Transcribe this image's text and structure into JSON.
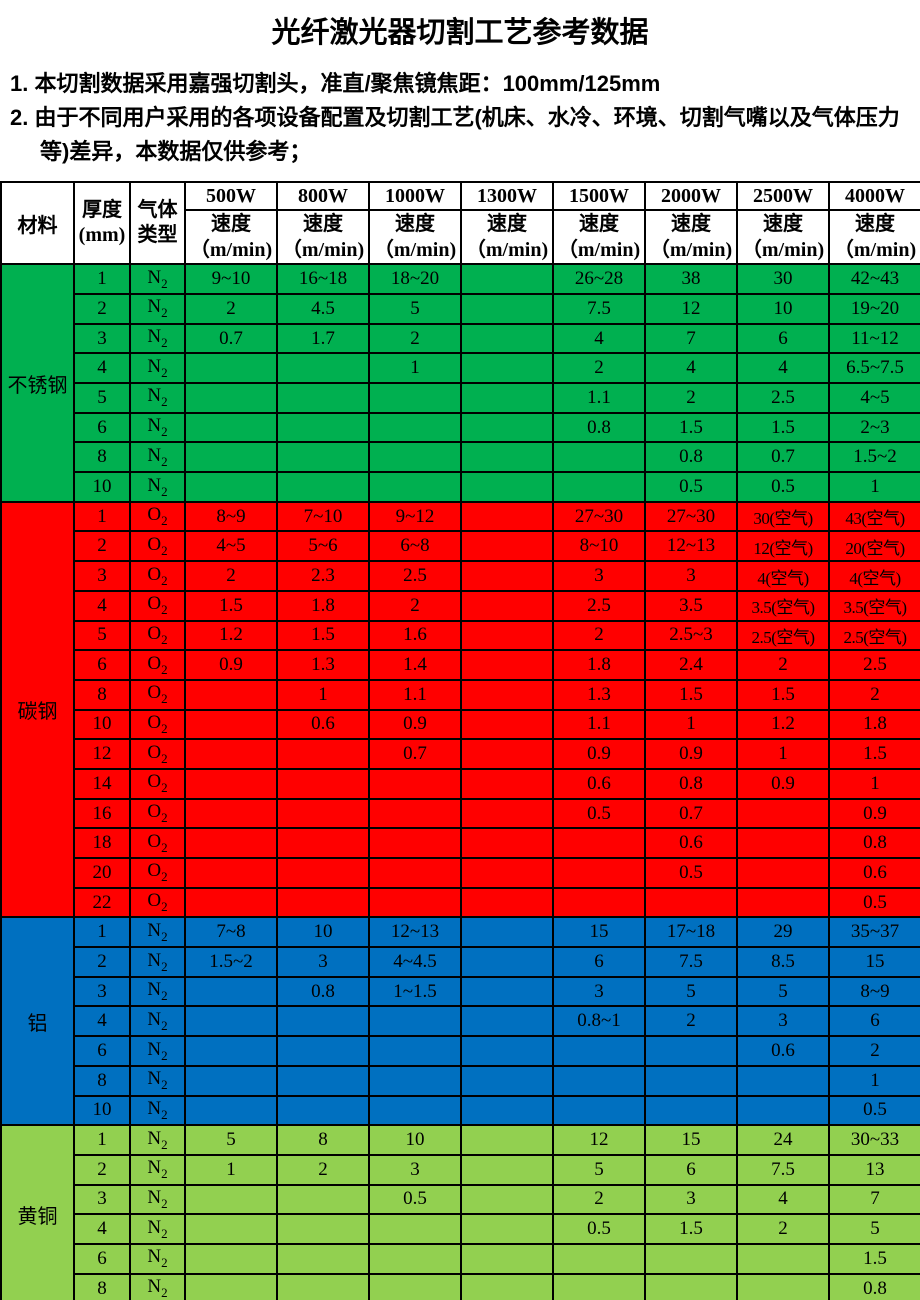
{
  "title": "光纤激光器切割工艺参考数据",
  "notes": [
    "1. 本切割数据采用嘉强切割头，准直/聚焦镜焦距：100mm/125mm",
    "2. 由于不同用户采用的各项设备配置及切割工艺(机床、水冷、环境、切割气嘴以及气体压力等)差异，本数据仅供参考；"
  ],
  "colors": {
    "stainless_steel": "#00B050",
    "carbon_steel": "#FF0000",
    "aluminum": "#0070C0",
    "brass": "#92D050",
    "border": "#000000"
  },
  "table": {
    "headers": {
      "material": "材料",
      "thickness_line1": "厚度",
      "thickness_line2": "(mm)",
      "gas_line1": "气体",
      "gas_line2": "类型",
      "powers": [
        "500W",
        "800W",
        "1000W",
        "1300W",
        "1500W",
        "2000W",
        "2500W",
        "4000W"
      ],
      "speed_label": "速度",
      "speed_unit": "（m/min)"
    },
    "sections": [
      {
        "material": "不锈钢",
        "color": "#00B050",
        "gas_base": "N",
        "gas_sub": "2",
        "rows": [
          {
            "t": "1",
            "s": [
              "9~10",
              "16~18",
              "18~20",
              "",
              "26~28",
              "38",
              "30",
              "42~43"
            ]
          },
          {
            "t": "2",
            "s": [
              "2",
              "4.5",
              "5",
              "",
              "7.5",
              "12",
              "10",
              "19~20"
            ]
          },
          {
            "t": "3",
            "s": [
              "0.7",
              "1.7",
              "2",
              "",
              "4",
              "7",
              "6",
              "11~12"
            ]
          },
          {
            "t": "4",
            "s": [
              "",
              "",
              "1",
              "",
              "2",
              "4",
              "4",
              "6.5~7.5"
            ]
          },
          {
            "t": "5",
            "s": [
              "",
              "",
              "",
              "",
              "1.1",
              "2",
              "2.5",
              "4~5"
            ]
          },
          {
            "t": "6",
            "s": [
              "",
              "",
              "",
              "",
              "0.8",
              "1.5",
              "1.5",
              "2~3"
            ]
          },
          {
            "t": "8",
            "s": [
              "",
              "",
              "",
              "",
              "",
              "0.8",
              "0.7",
              "1.5~2"
            ]
          },
          {
            "t": "10",
            "s": [
              "",
              "",
              "",
              "",
              "",
              "0.5",
              "0.5",
              "1"
            ]
          }
        ]
      },
      {
        "material": "碳钢",
        "color": "#FF0000",
        "gas_base": "O",
        "gas_sub": "2",
        "rows": [
          {
            "t": "1",
            "s": [
              "8~9",
              "7~10",
              "9~12",
              "",
              "27~30",
              "27~30",
              "30(空气)",
              "43(空气)"
            ]
          },
          {
            "t": "2",
            "s": [
              "4~5",
              "5~6",
              "6~8",
              "",
              "8~10",
              "12~13",
              "12(空气)",
              "20(空气)"
            ]
          },
          {
            "t": "3",
            "s": [
              "2",
              "2.3",
              "2.5",
              "",
              "3",
              "3",
              "4(空气)",
              "4(空气)"
            ]
          },
          {
            "t": "4",
            "s": [
              "1.5",
              "1.8",
              "2",
              "",
              "2.5",
              "3.5",
              "3.5(空气)",
              "3.5(空气)"
            ]
          },
          {
            "t": "5",
            "s": [
              "1.2",
              "1.5",
              "1.6",
              "",
              "2",
              "2.5~3",
              "2.5(空气)",
              "2.5(空气)"
            ]
          },
          {
            "t": "6",
            "s": [
              "0.9",
              "1.3",
              "1.4",
              "",
              "1.8",
              "2.4",
              "2",
              "2.5"
            ]
          },
          {
            "t": "8",
            "s": [
              "",
              "1",
              "1.1",
              "",
              "1.3",
              "1.5",
              "1.5",
              "2"
            ]
          },
          {
            "t": "10",
            "s": [
              "",
              "0.6",
              "0.9",
              "",
              "1.1",
              "1",
              "1.2",
              "1.8"
            ]
          },
          {
            "t": "12",
            "s": [
              "",
              "",
              "0.7",
              "",
              "0.9",
              "0.9",
              "1",
              "1.5"
            ]
          },
          {
            "t": "14",
            "s": [
              "",
              "",
              "",
              "",
              "0.6",
              "0.8",
              "0.9",
              "1"
            ]
          },
          {
            "t": "16",
            "s": [
              "",
              "",
              "",
              "",
              "0.5",
              "0.7",
              "",
              "0.9"
            ]
          },
          {
            "t": "18",
            "s": [
              "",
              "",
              "",
              "",
              "",
              "0.6",
              "",
              "0.8"
            ]
          },
          {
            "t": "20",
            "s": [
              "",
              "",
              "",
              "",
              "",
              "0.5",
              "",
              "0.6"
            ]
          },
          {
            "t": "22",
            "s": [
              "",
              "",
              "",
              "",
              "",
              "",
              "",
              "0.5"
            ]
          }
        ]
      },
      {
        "material": "铝",
        "color": "#0070C0",
        "gas_base": "N",
        "gas_sub": "2",
        "rows": [
          {
            "t": "1",
            "s": [
              "7~8",
              "10",
              "12~13",
              "",
              "15",
              "17~18",
              "29",
              "35~37"
            ]
          },
          {
            "t": "2",
            "s": [
              "1.5~2",
              "3",
              "4~4.5",
              "",
              "6",
              "7.5",
              "8.5",
              "15"
            ]
          },
          {
            "t": "3",
            "s": [
              "",
              "0.8",
              "1~1.5",
              "",
              "3",
              "5",
              "5",
              "8~9"
            ]
          },
          {
            "t": "4",
            "s": [
              "",
              "",
              "",
              "",
              "0.8~1",
              "2",
              "3",
              "6"
            ]
          },
          {
            "t": "6",
            "s": [
              "",
              "",
              "",
              "",
              "",
              "",
              "0.6",
              "2"
            ]
          },
          {
            "t": "8",
            "s": [
              "",
              "",
              "",
              "",
              "",
              "",
              "",
              "1"
            ]
          },
          {
            "t": "10",
            "s": [
              "",
              "",
              "",
              "",
              "",
              "",
              "",
              "0.5"
            ]
          }
        ]
      },
      {
        "material": "黄铜",
        "color": "#92D050",
        "gas_base": "N",
        "gas_sub": "2",
        "rows": [
          {
            "t": "1",
            "s": [
              "5",
              "8",
              "10",
              "",
              "12",
              "15",
              "24",
              "30~33"
            ]
          },
          {
            "t": "2",
            "s": [
              "1",
              "2",
              "3",
              "",
              "5",
              "6",
              "7.5",
              "13"
            ]
          },
          {
            "t": "3",
            "s": [
              "",
              "",
              "0.5",
              "",
              "2",
              "3",
              "4",
              "7"
            ]
          },
          {
            "t": "4",
            "s": [
              "",
              "",
              "",
              "",
              "0.5",
              "1.5",
              "2",
              "5"
            ]
          },
          {
            "t": "6",
            "s": [
              "",
              "",
              "",
              "",
              "",
              "",
              "",
              "1.5"
            ]
          },
          {
            "t": "8",
            "s": [
              "",
              "",
              "",
              "",
              "",
              "",
              "",
              "0.8"
            ]
          }
        ]
      }
    ]
  }
}
